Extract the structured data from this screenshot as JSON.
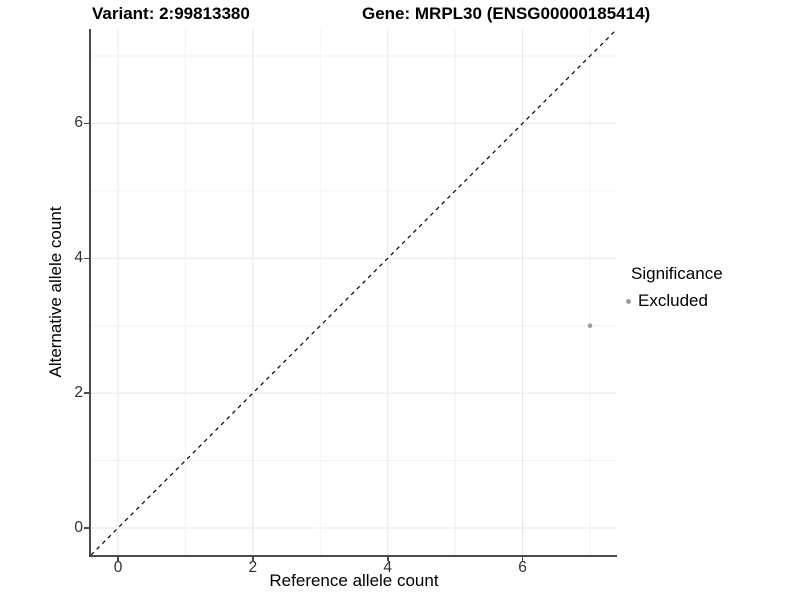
{
  "chart_data": {
    "type": "scatter",
    "titles": {
      "variant": "Variant: 2:99813380",
      "gene": "Gene: MRPL30 (ENSG00000185414)"
    },
    "xlabel": "Reference allele count",
    "ylabel": "Alternative allele count",
    "xlim": [
      -0.4,
      7.4
    ],
    "ylim": [
      -0.4,
      7.4
    ],
    "x_ticks": [
      0,
      2,
      4,
      6
    ],
    "y_ticks": [
      0,
      2,
      4,
      6
    ],
    "grid_major": [
      0,
      2,
      4,
      6
    ],
    "grid_minor": [
      1,
      3,
      5,
      7
    ],
    "identity_line": {
      "style": "dashed",
      "from": [
        -0.4,
        -0.4
      ],
      "to": [
        7.4,
        7.4
      ]
    },
    "series": [
      {
        "name": "Excluded",
        "color": "#9d9d9d",
        "points": [
          {
            "x": 7,
            "y": 3
          }
        ]
      }
    ],
    "legend": {
      "title": "Significance",
      "position": "right",
      "items": [
        {
          "label": "Excluded",
          "color": "#9d9d9d"
        }
      ]
    },
    "colors": {
      "background": "#ffffff",
      "grid_major": "#e7e7e7",
      "grid_minor": "#f2f2f2",
      "axis": "#4a4a4a",
      "tick_label": "#303030",
      "identity_line": "#000000"
    }
  }
}
